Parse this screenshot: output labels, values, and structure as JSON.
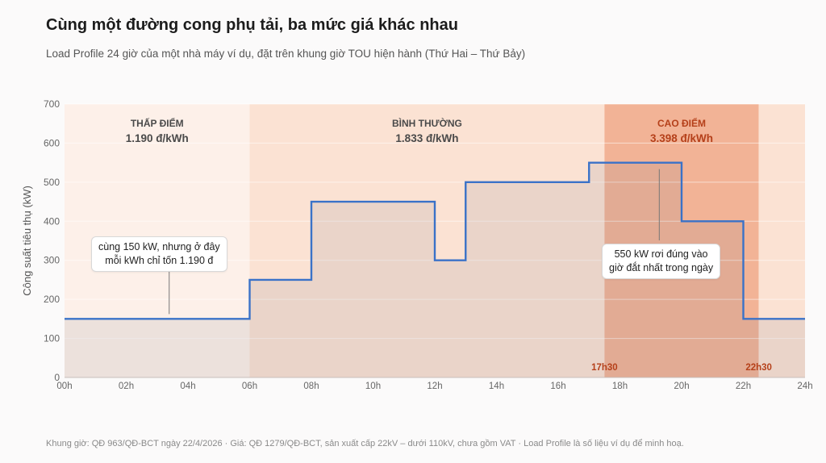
{
  "header": {
    "title": "Cùng một đường cong phụ tải, ba mức giá khác nhau",
    "subtitle": "Load Profile 24 giờ của một nhà máy ví dụ, đặt trên khung giờ TOU hiện hành (Thứ Hai – Thứ Bảy)"
  },
  "footer": {
    "note": "Khung giờ: QĐ 963/QĐ-BCT ngày 22/4/2026 · Giá: QĐ 1279/QĐ-BCT, sản xuất cấp 22kV – dưới 110kV, chưa gồm VAT · Load Profile là số liệu ví dụ để minh hoạ."
  },
  "chart_data": {
    "type": "line",
    "step": true,
    "ylabel": "Công suất tiêu thụ (kW)",
    "xlabel": "",
    "ylim": [
      0,
      700
    ],
    "xlim": [
      0,
      24
    ],
    "y_ticks": [
      "0",
      "100",
      "200",
      "300",
      "400",
      "500",
      "600",
      "700"
    ],
    "x_ticks": [
      "00h",
      "02h",
      "04h",
      "06h",
      "08h",
      "10h",
      "12h",
      "14h",
      "16h",
      "18h",
      "20h",
      "22h",
      "24h"
    ],
    "grid": true,
    "series": [
      {
        "x": [
          0,
          6,
          8,
          12,
          13,
          17,
          20,
          22,
          24
        ],
        "y": [
          150,
          250,
          450,
          300,
          500,
          550,
          400,
          150,
          150
        ],
        "color": "#3a72c8"
      }
    ],
    "zones": [
      {
        "name": "THẤP ĐIỂM",
        "price": "1.190 đ/kWh",
        "start": 0,
        "end": 6,
        "color": "#fdf0e9",
        "label_color": "#4a4a4a"
      },
      {
        "name": "BÌNH THƯỜNG",
        "price": "1.833 đ/kWh",
        "start": 6,
        "end": 17.5,
        "color": "#fbe2d3",
        "label_color": "#4a4a4a"
      },
      {
        "name": "CAO ĐIỂM",
        "price": "3.398 đ/kWh",
        "start": 17.5,
        "end": 22.5,
        "color": "#f2b396",
        "label_color": "#b5401a"
      },
      {
        "name": "",
        "price": "",
        "start": 22.5,
        "end": 24,
        "color": "#fbe2d3",
        "label_color": "#4a4a4a"
      }
    ],
    "peak_markers": [
      {
        "label": "17h30",
        "x": 17.5
      },
      {
        "label": "22h30",
        "x": 22.5
      }
    ],
    "annotations": [
      {
        "lines": [
          "cùng 150 kW, nhưng ở đây",
          "mỗi kWh chỉ tốn 1.190 đ"
        ],
        "x": 3,
        "y": 150
      },
      {
        "lines": [
          "550 kW rơi đúng vào",
          "giờ đắt nhất trong ngày"
        ],
        "x": 19.25,
        "y": 550
      }
    ],
    "colors": {
      "line": "#3a72c8",
      "fill": "rgba(120,120,140,0.13)",
      "peak_text": "#b5401a",
      "axis_text": "#666666",
      "grid": "#e9e2de"
    }
  }
}
